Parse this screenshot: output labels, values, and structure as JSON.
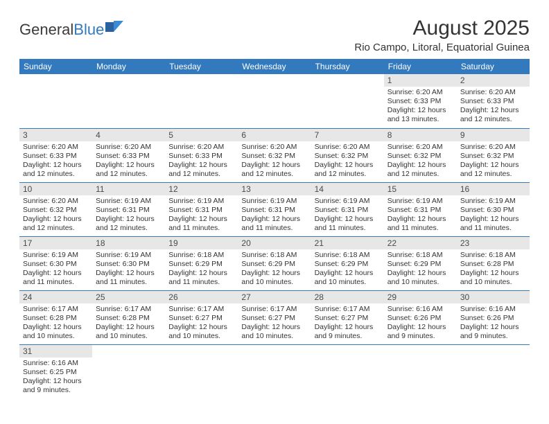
{
  "logo": {
    "text_dark": "General",
    "text_blue": "Blue"
  },
  "title": "August 2025",
  "subtitle": "Rio Campo, Litoral, Equatorial Guinea",
  "header_bg": "#3279bd",
  "row_divider": "#3279bd",
  "daynum_bg": "#e7e7e7",
  "weekdays": [
    "Sunday",
    "Monday",
    "Tuesday",
    "Wednesday",
    "Thursday",
    "Friday",
    "Saturday"
  ],
  "first_weekday_index": 5,
  "days": [
    {
      "n": 1,
      "sunrise": "6:20 AM",
      "sunset": "6:33 PM",
      "dl": "12 hours and 13 minutes."
    },
    {
      "n": 2,
      "sunrise": "6:20 AM",
      "sunset": "6:33 PM",
      "dl": "12 hours and 12 minutes."
    },
    {
      "n": 3,
      "sunrise": "6:20 AM",
      "sunset": "6:33 PM",
      "dl": "12 hours and 12 minutes."
    },
    {
      "n": 4,
      "sunrise": "6:20 AM",
      "sunset": "6:33 PM",
      "dl": "12 hours and 12 minutes."
    },
    {
      "n": 5,
      "sunrise": "6:20 AM",
      "sunset": "6:33 PM",
      "dl": "12 hours and 12 minutes."
    },
    {
      "n": 6,
      "sunrise": "6:20 AM",
      "sunset": "6:32 PM",
      "dl": "12 hours and 12 minutes."
    },
    {
      "n": 7,
      "sunrise": "6:20 AM",
      "sunset": "6:32 PM",
      "dl": "12 hours and 12 minutes."
    },
    {
      "n": 8,
      "sunrise": "6:20 AM",
      "sunset": "6:32 PM",
      "dl": "12 hours and 12 minutes."
    },
    {
      "n": 9,
      "sunrise": "6:20 AM",
      "sunset": "6:32 PM",
      "dl": "12 hours and 12 minutes."
    },
    {
      "n": 10,
      "sunrise": "6:20 AM",
      "sunset": "6:32 PM",
      "dl": "12 hours and 12 minutes."
    },
    {
      "n": 11,
      "sunrise": "6:19 AM",
      "sunset": "6:31 PM",
      "dl": "12 hours and 12 minutes."
    },
    {
      "n": 12,
      "sunrise": "6:19 AM",
      "sunset": "6:31 PM",
      "dl": "12 hours and 11 minutes."
    },
    {
      "n": 13,
      "sunrise": "6:19 AM",
      "sunset": "6:31 PM",
      "dl": "12 hours and 11 minutes."
    },
    {
      "n": 14,
      "sunrise": "6:19 AM",
      "sunset": "6:31 PM",
      "dl": "12 hours and 11 minutes."
    },
    {
      "n": 15,
      "sunrise": "6:19 AM",
      "sunset": "6:31 PM",
      "dl": "12 hours and 11 minutes."
    },
    {
      "n": 16,
      "sunrise": "6:19 AM",
      "sunset": "6:30 PM",
      "dl": "12 hours and 11 minutes."
    },
    {
      "n": 17,
      "sunrise": "6:19 AM",
      "sunset": "6:30 PM",
      "dl": "12 hours and 11 minutes."
    },
    {
      "n": 18,
      "sunrise": "6:19 AM",
      "sunset": "6:30 PM",
      "dl": "12 hours and 11 minutes."
    },
    {
      "n": 19,
      "sunrise": "6:18 AM",
      "sunset": "6:29 PM",
      "dl": "12 hours and 11 minutes."
    },
    {
      "n": 20,
      "sunrise": "6:18 AM",
      "sunset": "6:29 PM",
      "dl": "12 hours and 10 minutes."
    },
    {
      "n": 21,
      "sunrise": "6:18 AM",
      "sunset": "6:29 PM",
      "dl": "12 hours and 10 minutes."
    },
    {
      "n": 22,
      "sunrise": "6:18 AM",
      "sunset": "6:29 PM",
      "dl": "12 hours and 10 minutes."
    },
    {
      "n": 23,
      "sunrise": "6:18 AM",
      "sunset": "6:28 PM",
      "dl": "12 hours and 10 minutes."
    },
    {
      "n": 24,
      "sunrise": "6:17 AM",
      "sunset": "6:28 PM",
      "dl": "12 hours and 10 minutes."
    },
    {
      "n": 25,
      "sunrise": "6:17 AM",
      "sunset": "6:28 PM",
      "dl": "12 hours and 10 minutes."
    },
    {
      "n": 26,
      "sunrise": "6:17 AM",
      "sunset": "6:27 PM",
      "dl": "12 hours and 10 minutes."
    },
    {
      "n": 27,
      "sunrise": "6:17 AM",
      "sunset": "6:27 PM",
      "dl": "12 hours and 10 minutes."
    },
    {
      "n": 28,
      "sunrise": "6:17 AM",
      "sunset": "6:27 PM",
      "dl": "12 hours and 9 minutes."
    },
    {
      "n": 29,
      "sunrise": "6:16 AM",
      "sunset": "6:26 PM",
      "dl": "12 hours and 9 minutes."
    },
    {
      "n": 30,
      "sunrise": "6:16 AM",
      "sunset": "6:26 PM",
      "dl": "12 hours and 9 minutes."
    },
    {
      "n": 31,
      "sunrise": "6:16 AM",
      "sunset": "6:25 PM",
      "dl": "12 hours and 9 minutes."
    }
  ],
  "labels": {
    "sunrise": "Sunrise:",
    "sunset": "Sunset:",
    "daylight": "Daylight:"
  }
}
